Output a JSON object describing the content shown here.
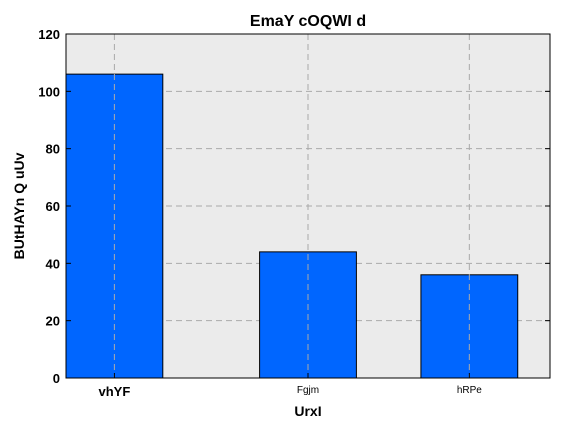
{
  "chart_data": {
    "type": "bar",
    "title": "EmaY cOQWI d",
    "xlabel": "UrxI",
    "ylabel": "BUtHAYn Q uUv",
    "categories": [
      "vhYF",
      "Fgjm",
      "hRPe"
    ],
    "values": [
      106,
      44,
      36
    ],
    "ylim": [
      0,
      120
    ],
    "yticks": [
      "0",
      "20",
      "40",
      "60",
      "80",
      "100",
      "120"
    ],
    "grid": true,
    "legend": "none",
    "colors": {
      "bar": "#0066ff",
      "bar_edge": "#000000",
      "plot_background": "#ebebeb",
      "grid": "#aaaaaa"
    }
  }
}
